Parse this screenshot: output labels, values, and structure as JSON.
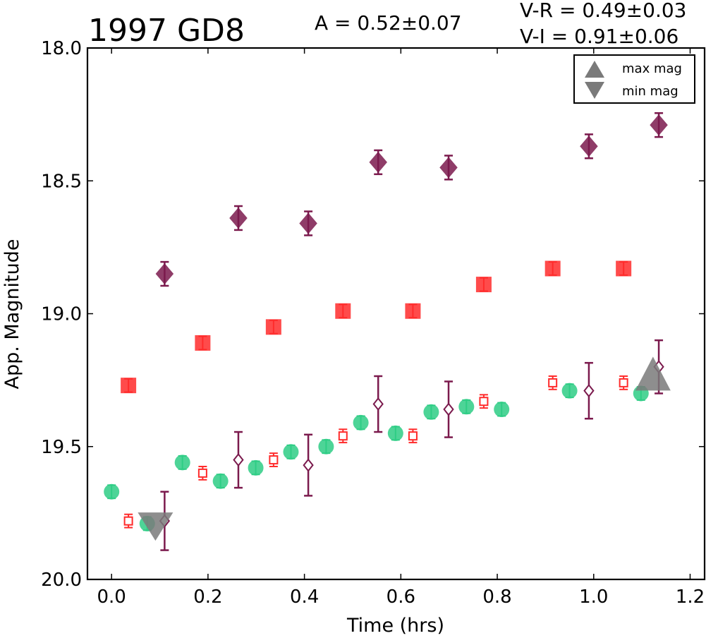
{
  "chart_data": {
    "type": "scatter",
    "title": "1997 GD8",
    "annotations": {
      "amplitude": "A  = 0.52±0.07",
      "v_r": "V-R = 0.49±0.03",
      "v_i": "V-I  = 0.91±0.06"
    },
    "xlabel": "Time (hrs)",
    "ylabel": "App. Magnitude",
    "xlim": [
      -0.05,
      1.23
    ],
    "ylim": [
      20.0,
      18.0
    ],
    "y_inverted": true,
    "x_ticks": [
      "0.0",
      "0.2",
      "0.4",
      "0.6",
      "0.8",
      "1.0",
      "1.2"
    ],
    "y_ticks": [
      "18.0",
      "18.5",
      "19.0",
      "19.5",
      "20.0"
    ],
    "grid": false,
    "legend_position": "top-right",
    "legend": [
      {
        "label": "max mag",
        "marker": "triangle-up"
      },
      {
        "label": "min mag",
        "marker": "triangle-down"
      }
    ],
    "colors": {
      "green": "#2ecc85",
      "red": "#ff2b2b",
      "purple": "#7b1a4d",
      "gray": "#7a7a7a"
    },
    "series": [
      {
        "marker": "circle",
        "fill": "filled",
        "color": "#2ecc85",
        "x": [
          0.0,
          0.074,
          0.147,
          0.226,
          0.299,
          0.372,
          0.445,
          0.517,
          0.589,
          0.663,
          0.736,
          0.809,
          0.95,
          1.098
        ],
        "y": [
          19.67,
          19.79,
          19.56,
          19.63,
          19.58,
          19.52,
          19.5,
          19.41,
          19.45,
          19.37,
          19.35,
          19.36,
          19.29,
          19.3
        ],
        "err": [
          0.025,
          0.025,
          0.025,
          0.025,
          0.025,
          0.025,
          0.025,
          0.025,
          0.025,
          0.025,
          0.025,
          0.025,
          0.025,
          0.025
        ]
      },
      {
        "marker": "square",
        "fill": "filled",
        "color": "#ff2b2b",
        "x": [
          0.035,
          0.189,
          0.336,
          0.48,
          0.625,
          0.772,
          0.915,
          1.062
        ],
        "y": [
          19.27,
          19.11,
          19.05,
          18.99,
          18.99,
          18.89,
          18.83,
          18.83
        ],
        "err": [
          0.025,
          0.025,
          0.025,
          0.025,
          0.025,
          0.025,
          0.025,
          0.025
        ]
      },
      {
        "marker": "square",
        "fill": "open",
        "color": "#ff2b2b",
        "x": [
          0.035,
          0.189,
          0.336,
          0.48,
          0.625,
          0.772,
          0.915,
          1.062
        ],
        "y": [
          19.78,
          19.6,
          19.55,
          19.46,
          19.46,
          19.33,
          19.26,
          19.26
        ],
        "err": [
          0.025,
          0.025,
          0.025,
          0.025,
          0.025,
          0.025,
          0.025,
          0.025
        ]
      },
      {
        "marker": "diamond",
        "fill": "filled",
        "color": "#7b1a4d",
        "x": [
          0.11,
          0.263,
          0.408,
          0.553,
          0.699,
          0.99,
          1.135
        ],
        "y": [
          18.85,
          18.64,
          18.66,
          18.43,
          18.45,
          18.37,
          18.29
        ],
        "err": [
          0.045,
          0.045,
          0.045,
          0.045,
          0.045,
          0.045,
          0.045
        ]
      },
      {
        "marker": "diamond",
        "fill": "open",
        "color": "#7b1a4d",
        "x": [
          0.11,
          0.263,
          0.408,
          0.553,
          0.699,
          0.99,
          1.135
        ],
        "y": [
          19.78,
          19.55,
          19.57,
          19.34,
          19.36,
          19.29,
          19.2
        ],
        "err": [
          0.11,
          0.105,
          0.115,
          0.105,
          0.105,
          0.105,
          0.1
        ]
      },
      {
        "marker": "triangle-up",
        "fill": "filled",
        "color": "#7a7a7a",
        "role": "max mag",
        "x": [
          1.123
        ],
        "y": [
          19.26
        ]
      },
      {
        "marker": "triangle-down",
        "fill": "filled",
        "color": "#7a7a7a",
        "role": "min mag",
        "x": [
          0.091
        ],
        "y": [
          19.78
        ]
      }
    ]
  }
}
